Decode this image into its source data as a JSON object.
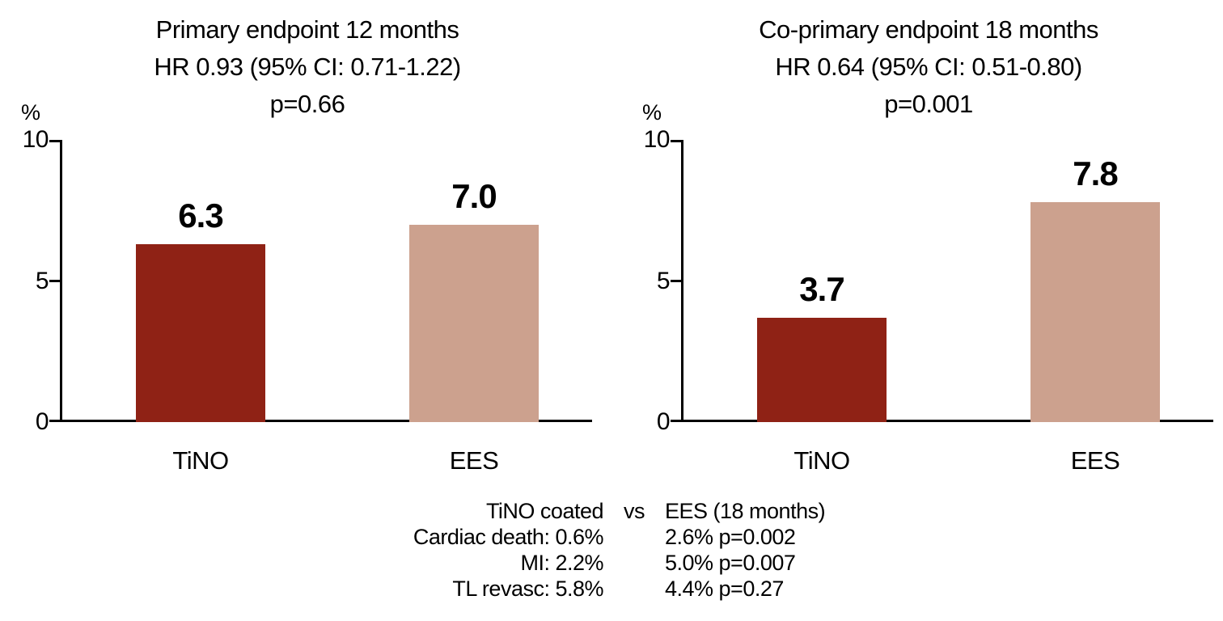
{
  "chart_data": [
    {
      "type": "bar",
      "title_lines": [
        "Primary endpoint 12 months",
        "HR 0.93 (95% CI: 0.71-1.22)",
        "p=0.66"
      ],
      "ylabel": "%",
      "ylim": [
        0,
        10
      ],
      "yticks": [
        10,
        5,
        0
      ],
      "ytick_labels": [
        "10",
        "5",
        "0"
      ],
      "categories": [
        "TiNO",
        "EES"
      ],
      "values": [
        6.3,
        7.0
      ],
      "value_labels": [
        "6.3",
        "7.0"
      ],
      "bar_colors": [
        "#8F2215",
        "#CCA18E"
      ],
      "grid": "off",
      "legend": "none"
    },
    {
      "type": "bar",
      "title_lines": [
        "Co-primary endpoint 18 months",
        "HR 0.64 (95% CI: 0.51-0.80)",
        "p=0.001"
      ],
      "ylabel": "%",
      "ylim": [
        0,
        10
      ],
      "yticks": [
        10,
        5,
        0
      ],
      "ytick_labels": [
        "10",
        "5",
        "0"
      ],
      "categories": [
        "TiNO",
        "EES"
      ],
      "values": [
        3.7,
        7.8
      ],
      "value_labels": [
        "3.7",
        "7.8"
      ],
      "bar_colors": [
        "#8F2215",
        "#CCA18E"
      ],
      "grid": "off",
      "legend": "none"
    }
  ],
  "footnote": {
    "rows": [
      {
        "left": "TiNO coated",
        "mid": "vs",
        "right": "EES (18 months)"
      },
      {
        "left": "Cardiac death: 0.6%",
        "mid": "",
        "right": "2.6% p=0.002"
      },
      {
        "left": "MI: 2.2%",
        "mid": "",
        "right": "5.0% p=0.007"
      },
      {
        "left": "TL revasc: 5.8%",
        "mid": "",
        "right": "4.4% p=0.27"
      }
    ]
  },
  "colors": {
    "tino_bar": "#8F2215",
    "ees_bar": "#CCA18E",
    "axis": "#000000",
    "text": "#000000",
    "background": "#FFFFFF"
  }
}
